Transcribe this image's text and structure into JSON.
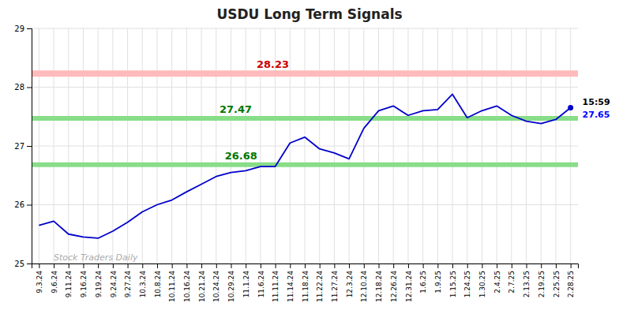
{
  "chart_data": {
    "type": "line",
    "title": "USDU Long Term Signals",
    "categories": [
      "9.3.24",
      "9.6.24",
      "9.11.24",
      "9.16.24",
      "9.19.24",
      "9.24.24",
      "9.27.24",
      "10.3.24",
      "10.8.24",
      "10.11.24",
      "10.16.24",
      "10.21.24",
      "10.24.24",
      "10.29.24",
      "11.1.24",
      "11.6.24",
      "11.11.24",
      "11.14.24",
      "11.18.24",
      "11.22.24",
      "11.27.24",
      "12.3.24",
      "12.10.24",
      "12.18.24",
      "12.26.24",
      "12.31.24",
      "1.6.25",
      "1.9.25",
      "1.15.25",
      "1.24.25",
      "1.30.25",
      "2.4.25",
      "2.7.25",
      "2.13.25",
      "2.19.25",
      "2.25.25",
      "2.28.25"
    ],
    "values": [
      25.65,
      25.72,
      25.5,
      25.45,
      25.43,
      25.55,
      25.7,
      25.88,
      26.0,
      26.08,
      26.22,
      26.35,
      26.48,
      26.55,
      26.58,
      26.65,
      26.65,
      27.05,
      27.15,
      26.95,
      26.88,
      26.78,
      27.3,
      27.6,
      27.68,
      27.52,
      27.6,
      27.62,
      27.88,
      27.48,
      27.6,
      27.68,
      27.52,
      27.42,
      27.38,
      27.45,
      27.65
    ],
    "color": "#0000cc",
    "ylim": [
      25.0,
      29.0
    ],
    "yticks": [
      25,
      26,
      27,
      28,
      29
    ],
    "grid": true,
    "reference_lines": [
      {
        "value": 28.23,
        "label": "28.23",
        "color": "#ffbbbb",
        "label_color": "#cc0000"
      },
      {
        "value": 27.47,
        "label": "27.47",
        "color": "#88dd88",
        "label_color": "#007700"
      },
      {
        "value": 26.68,
        "label": "26.68",
        "color": "#88dd88",
        "label_color": "#007700"
      }
    ],
    "annotations": [
      {
        "text": "15:59"
      },
      {
        "text": "27.65",
        "value": 27.65,
        "color": "#0000ff"
      },
      {
        "text": "Stock Traders Daily",
        "color": "#aaaaaa"
      }
    ]
  }
}
